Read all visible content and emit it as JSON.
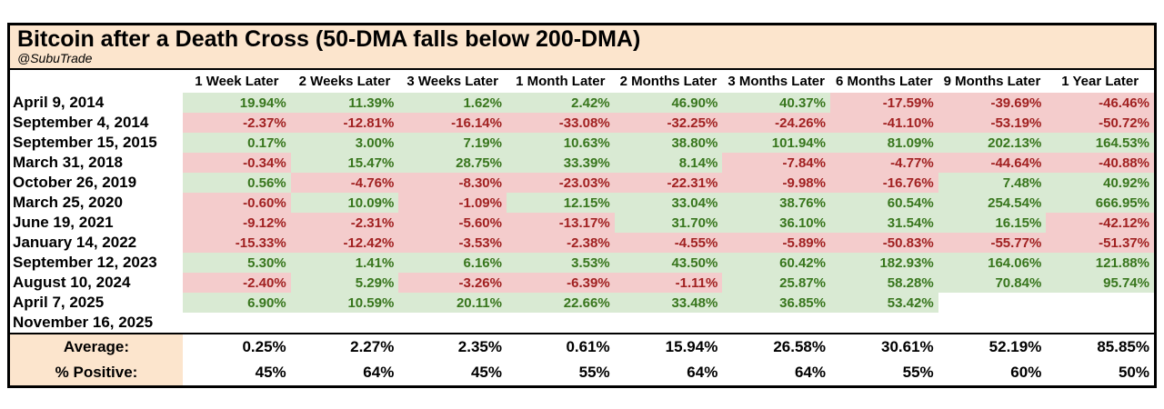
{
  "colors": {
    "title_bg": "#fce5cd",
    "positive_bg": "#d9ead3",
    "positive_text": "#38761d",
    "negative_bg": "#f4cccc",
    "negative_text": "#a12121",
    "border": "#000000"
  },
  "chart_data": {
    "type": "table",
    "title": "Bitcoin after a Death Cross (50-DMA falls below 200-DMA)",
    "subtitle": "@SubuTrade",
    "columns": [
      "1 Week Later",
      "2 Weeks Later",
      "3 Weeks Later",
      "1 Month Later",
      "2 Months Later",
      "3 Months Later",
      "6 Months Later",
      "9 Months Later",
      "1 Year Later"
    ],
    "rows": [
      {
        "date": "April 9, 2014",
        "values": [
          "19.94%",
          "11.39%",
          "1.62%",
          "2.42%",
          "46.90%",
          "40.37%",
          "-17.59%",
          "-39.69%",
          "-46.46%"
        ]
      },
      {
        "date": "September 4, 2014",
        "values": [
          "-2.37%",
          "-12.81%",
          "-16.14%",
          "-33.08%",
          "-32.25%",
          "-24.26%",
          "-41.10%",
          "-53.19%",
          "-50.72%"
        ]
      },
      {
        "date": "September 15, 2015",
        "values": [
          "0.17%",
          "3.00%",
          "7.19%",
          "10.63%",
          "38.80%",
          "101.94%",
          "81.09%",
          "202.13%",
          "164.53%"
        ]
      },
      {
        "date": "March 31, 2018",
        "values": [
          "-0.34%",
          "15.47%",
          "28.75%",
          "33.39%",
          "8.14%",
          "-7.84%",
          "-4.77%",
          "-44.64%",
          "-40.88%"
        ]
      },
      {
        "date": "October 26, 2019",
        "values": [
          "0.56%",
          "-4.76%",
          "-8.30%",
          "-23.03%",
          "-22.31%",
          "-9.98%",
          "-16.76%",
          "7.48%",
          "40.92%"
        ]
      },
      {
        "date": "March 25, 2020",
        "values": [
          "-0.60%",
          "10.09%",
          "-1.09%",
          "12.15%",
          "33.04%",
          "38.76%",
          "60.54%",
          "254.54%",
          "666.95%"
        ]
      },
      {
        "date": "June 19, 2021",
        "values": [
          "-9.12%",
          "-2.31%",
          "-5.60%",
          "-13.17%",
          "31.70%",
          "36.10%",
          "31.54%",
          "16.15%",
          "-42.12%"
        ]
      },
      {
        "date": "January 14, 2022",
        "values": [
          "-15.33%",
          "-12.42%",
          "-3.53%",
          "-2.38%",
          "-4.55%",
          "-5.89%",
          "-50.83%",
          "-55.77%",
          "-51.37%"
        ]
      },
      {
        "date": "September 12, 2023",
        "values": [
          "5.30%",
          "1.41%",
          "6.16%",
          "3.53%",
          "43.50%",
          "60.42%",
          "182.93%",
          "164.06%",
          "121.88%"
        ]
      },
      {
        "date": "August 10, 2024",
        "values": [
          "-2.40%",
          "5.29%",
          "-3.26%",
          "-6.39%",
          "-1.11%",
          "25.87%",
          "58.28%",
          "70.84%",
          "95.74%"
        ]
      },
      {
        "date": "April 7, 2025",
        "values": [
          "6.90%",
          "10.59%",
          "20.11%",
          "22.66%",
          "33.48%",
          "36.85%",
          "53.42%",
          "",
          ""
        ]
      },
      {
        "date": "November 16, 2025",
        "values": [
          "",
          "",
          "",
          "",
          "",
          "",
          "",
          "",
          ""
        ]
      }
    ],
    "summary_rows": [
      {
        "label": "Average:",
        "values": [
          "0.25%",
          "2.27%",
          "2.35%",
          "0.61%",
          "15.94%",
          "26.58%",
          "30.61%",
          "52.19%",
          "85.85%"
        ]
      },
      {
        "label": "% Positive:",
        "values": [
          "45%",
          "64%",
          "45%",
          "55%",
          "64%",
          "64%",
          "55%",
          "60%",
          "50%"
        ]
      }
    ]
  }
}
